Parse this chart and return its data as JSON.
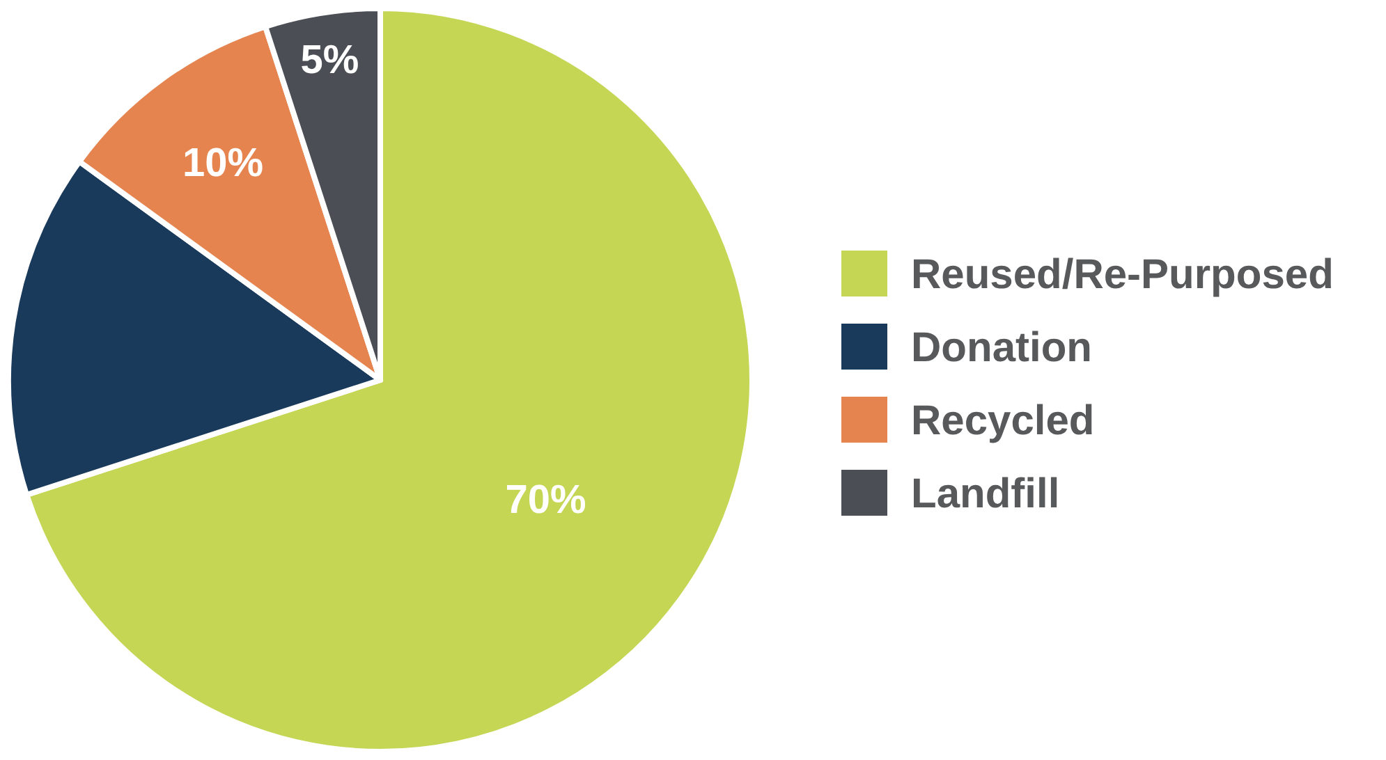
{
  "chart_data": {
    "type": "pie",
    "categories": [
      "Reused/Re-Purposed",
      "Donation",
      "Recycled",
      "Landfill"
    ],
    "values": [
      70,
      15,
      10,
      5
    ],
    "colors": [
      "#c5d654",
      "#1a3a5c",
      "#e5844f",
      "#4b4f55"
    ],
    "value_labels": [
      "70%",
      null,
      "10%",
      "5%"
    ],
    "legend": "right"
  }
}
